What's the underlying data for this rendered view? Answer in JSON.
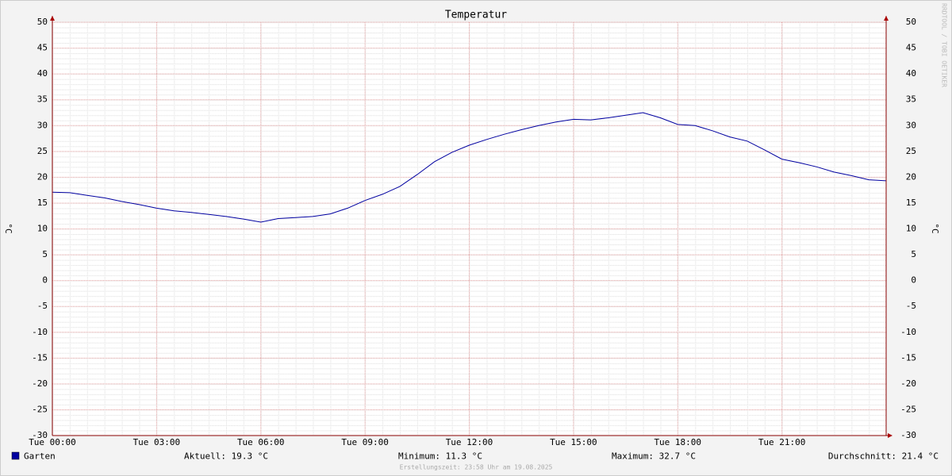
{
  "chart_data": {
    "type": "line",
    "title": "Temperatur",
    "ylabel": "°C",
    "x": [
      0,
      0.5,
      1,
      1.5,
      2,
      2.5,
      3,
      3.5,
      4,
      4.5,
      5,
      5.5,
      6,
      6.5,
      7,
      7.5,
      8,
      8.5,
      9,
      9.5,
      10,
      10.5,
      11,
      11.5,
      12,
      12.5,
      13,
      13.5,
      14,
      14.5,
      15,
      15.5,
      16,
      16.5,
      17,
      17.5,
      18,
      18.5,
      19,
      19.5,
      20,
      20.5,
      21,
      21.5,
      22,
      22.5,
      23,
      23.5,
      24
    ],
    "series": [
      {
        "name": "Garten",
        "color": "#0000a0",
        "values": [
          17.1,
          17.0,
          16.5,
          16.0,
          15.3,
          14.7,
          14.0,
          13.5,
          13.2,
          12.8,
          12.4,
          11.9,
          11.3,
          12.0,
          12.2,
          12.4,
          12.9,
          14.0,
          15.5,
          16.7,
          18.2,
          20.5,
          23.0,
          24.8,
          26.2,
          27.3,
          28.3,
          29.2,
          30.0,
          30.7,
          31.2,
          31.1,
          31.5,
          32.0,
          32.5,
          31.5,
          30.2,
          30.0,
          29.0,
          27.8,
          27.0,
          25.3,
          23.5,
          22.8,
          22.0,
          21.0,
          20.3,
          19.5,
          19.3
        ]
      }
    ],
    "xlim": [
      0,
      24
    ],
    "xticks": [
      {
        "value": 0,
        "label": "Tue 00:00"
      },
      {
        "value": 3,
        "label": "Tue 03:00"
      },
      {
        "value": 6,
        "label": "Tue 06:00"
      },
      {
        "value": 9,
        "label": "Tue 09:00"
      },
      {
        "value": 12,
        "label": "Tue 12:00"
      },
      {
        "value": 15,
        "label": "Tue 15:00"
      },
      {
        "value": 18,
        "label": "Tue 18:00"
      },
      {
        "value": 21,
        "label": "Tue 21:00"
      }
    ],
    "ylim": [
      -30,
      50
    ],
    "yticks": [
      -30,
      -25,
      -20,
      -15,
      -10,
      -5,
      0,
      5,
      10,
      15,
      20,
      25,
      30,
      35,
      40,
      45,
      50
    ],
    "grid": true,
    "stats": [
      "Aktuell: 19.3 °C",
      "Minimum: 11.3 °C",
      "Maximum: 32.7 °C",
      "Durchschnitt: 21.4 °C"
    ],
    "footer": "Erstellungszeit: 23:58 Uhr am 19.08.2025",
    "watermark": "RRDTOOL / TOBI OETIKER"
  }
}
